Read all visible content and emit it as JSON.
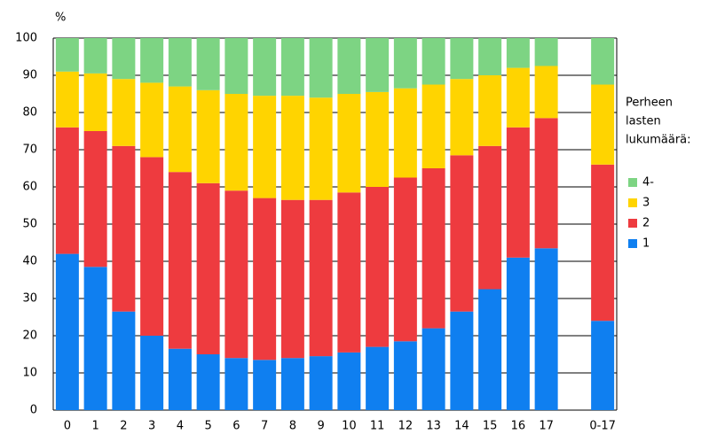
{
  "chart_data": {
    "type": "stacked_bar",
    "y_label": "%",
    "categories": [
      "0",
      "1",
      "2",
      "3",
      "4",
      "5",
      "6",
      "7",
      "8",
      "9",
      "10",
      "11",
      "12",
      "13",
      "14",
      "15",
      "16",
      "17",
      null,
      "0-17"
    ],
    "series": [
      {
        "name": "1",
        "color": "#0f7ff0",
        "values": [
          42,
          38.5,
          26.5,
          20,
          16.5,
          15,
          14,
          13.5,
          14,
          14.5,
          15.5,
          17,
          18.5,
          22,
          26.5,
          32.5,
          41,
          43.5,
          null,
          24
        ]
      },
      {
        "name": "2",
        "color": "#ee3b3f",
        "values": [
          34,
          36.5,
          44.5,
          48,
          47.5,
          46,
          45,
          43.5,
          42.5,
          42,
          43,
          43,
          44,
          43,
          42,
          38.5,
          35,
          35,
          null,
          42
        ]
      },
      {
        "name": "3",
        "color": "#ffd400",
        "values": [
          15,
          15.5,
          18,
          20,
          23,
          25,
          26,
          27.5,
          28,
          27.5,
          26.5,
          25.5,
          24,
          22.5,
          20.5,
          19,
          16,
          14,
          null,
          21.5
        ]
      },
      {
        "name": "4-",
        "color": "#7dd483",
        "values": [
          9,
          9.5,
          11,
          12,
          13,
          14,
          15,
          15.5,
          15.5,
          16,
          15,
          14.5,
          13.5,
          12.5,
          11,
          10,
          8,
          7.5,
          null,
          12.5
        ]
      }
    ],
    "ylim": [
      0,
      100
    ],
    "yticks": [
      0,
      10,
      20,
      30,
      40,
      50,
      60,
      70,
      80,
      90,
      100
    ],
    "grid": true,
    "legend_title": [
      "Perheen",
      "lasten",
      "lukumäärä:"
    ],
    "legend": "right"
  }
}
